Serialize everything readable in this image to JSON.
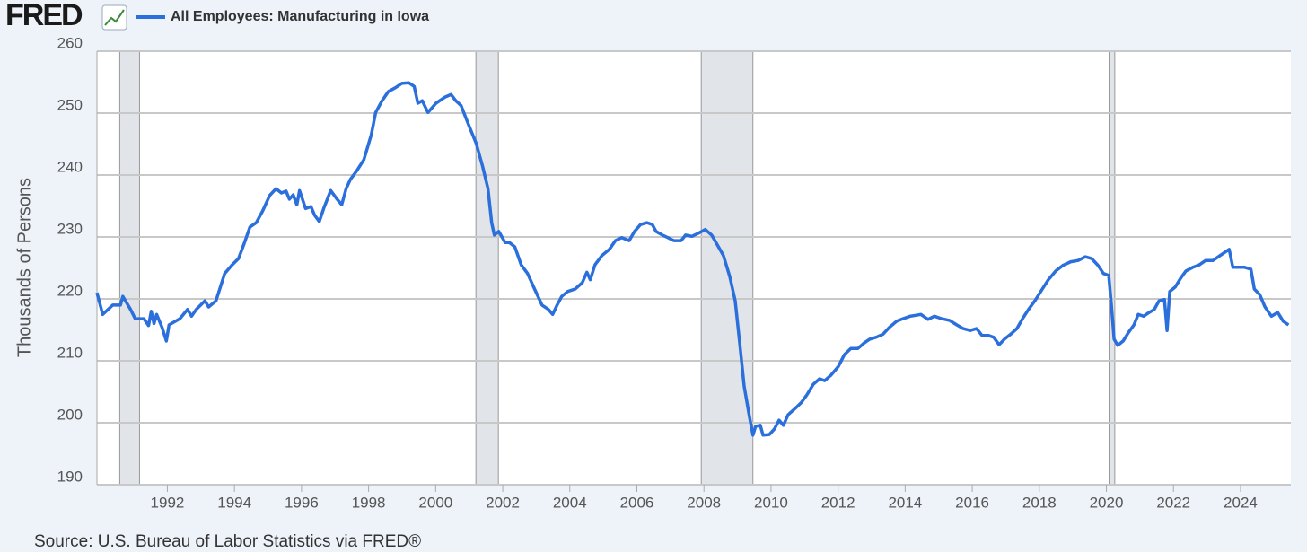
{
  "chart_data": {
    "type": "line",
    "logo": "FRED",
    "ylabel": "Thousands of Persons",
    "source": "Source: U.S. Bureau of Labor Statistics via FRED®",
    "xlim": [
      1989.9,
      2025.5
    ],
    "xticks": [
      1992,
      1994,
      1996,
      1998,
      2000,
      2002,
      2004,
      2006,
      2008,
      2010,
      2012,
      2014,
      2016,
      2018,
      2020,
      2022,
      2024
    ],
    "ylim": [
      190,
      260
    ],
    "yticks": [
      190,
      200,
      210,
      220,
      230,
      240,
      250,
      260
    ],
    "grid": true,
    "shaded_ranges": [
      [
        1990.58,
        1991.17
      ],
      [
        2001.2,
        2001.87
      ],
      [
        2007.92,
        2009.46
      ],
      [
        2020.08,
        2020.25
      ]
    ],
    "shade_color": "#e1e4e9",
    "x": [
      1989.9,
      1990.07,
      1990.37,
      1990.6,
      1990.67,
      1990.9,
      1991.04,
      1991.3,
      1991.44,
      1991.52,
      1991.6,
      1991.68,
      1991.84,
      1991.97,
      1992.05,
      1992.37,
      1992.6,
      1992.72,
      1992.86,
      1993.12,
      1993.23,
      1993.45,
      1993.71,
      1993.93,
      1994.12,
      1994.3,
      1994.46,
      1994.65,
      1994.84,
      1995.05,
      1995.24,
      1995.4,
      1995.54,
      1995.64,
      1995.75,
      1995.86,
      1995.94,
      1996.12,
      1996.28,
      1996.39,
      1996.53,
      1996.66,
      1996.87,
      1997.06,
      1997.2,
      1997.33,
      1997.46,
      1997.65,
      1997.86,
      1998.08,
      1998.21,
      1998.4,
      1998.59,
      1998.8,
      1998.99,
      1999.2,
      1999.36,
      1999.47,
      1999.6,
      1999.77,
      2000.01,
      2000.28,
      2000.46,
      2000.6,
      2000.76,
      2000.94,
      2001.21,
      2001.4,
      2001.56,
      2001.67,
      2001.75,
      2001.88,
      2002.07,
      2002.2,
      2002.36,
      2002.55,
      2002.74,
      2002.95,
      2003.17,
      2003.36,
      2003.49,
      2003.62,
      2003.76,
      2003.94,
      2004.16,
      2004.37,
      2004.51,
      2004.61,
      2004.75,
      2004.96,
      2005.18,
      2005.36,
      2005.55,
      2005.77,
      2005.93,
      2006.11,
      2006.3,
      2006.46,
      2006.57,
      2006.76,
      2006.92,
      2007.1,
      2007.32,
      2007.45,
      2007.64,
      2007.83,
      2008.04,
      2008.23,
      2008.39,
      2008.58,
      2008.77,
      2008.93,
      2009.06,
      2009.2,
      2009.36,
      2009.46,
      2009.54,
      2009.68,
      2009.76,
      2009.95,
      2010.1,
      2010.24,
      2010.37,
      2010.51,
      2010.72,
      2010.91,
      2011.07,
      2011.26,
      2011.45,
      2011.6,
      2011.79,
      2012.01,
      2012.19,
      2012.38,
      2012.59,
      2012.78,
      2012.94,
      2013.13,
      2013.34,
      2013.53,
      2013.75,
      2013.93,
      2014.15,
      2014.47,
      2014.68,
      2014.87,
      2015.09,
      2015.33,
      2015.54,
      2015.73,
      2015.94,
      2016.13,
      2016.29,
      2016.48,
      2016.64,
      2016.8,
      2016.96,
      2017.15,
      2017.33,
      2017.5,
      2017.68,
      2017.87,
      2018.09,
      2018.27,
      2018.49,
      2018.7,
      2018.94,
      2019.16,
      2019.37,
      2019.56,
      2019.75,
      2019.91,
      2020.07,
      2020.15,
      2020.23,
      2020.34,
      2020.5,
      2020.66,
      2020.82,
      2020.95,
      2021.11,
      2021.27,
      2021.43,
      2021.57,
      2021.73,
      2021.81,
      2021.89,
      2022.05,
      2022.21,
      2022.37,
      2022.58,
      2022.77,
      2022.96,
      2023.18,
      2023.39,
      2023.66,
      2023.77,
      2023.93,
      2024.12,
      2024.31,
      2024.41,
      2024.57,
      2024.73,
      2024.92,
      2025.11,
      2025.27,
      2025.43
    ],
    "series": [
      {
        "name": "All Employees: Manufacturing in Iowa",
        "color": "#2a6fdb",
        "values": [
          221,
          217.5,
          219,
          219,
          220.4,
          218.3,
          216.8,
          216.8,
          215.7,
          218,
          216,
          217.5,
          215.4,
          213.2,
          215.8,
          216.8,
          218.3,
          217.2,
          218.3,
          219.7,
          218.7,
          219.7,
          224.1,
          225.5,
          226.5,
          229.1,
          231.6,
          232.3,
          234.2,
          236.7,
          237.8,
          237.1,
          237.4,
          236.1,
          236.8,
          235.2,
          237.5,
          234.6,
          234.9,
          233.5,
          232.5,
          234.6,
          237.5,
          236.1,
          235.2,
          237.8,
          239.3,
          240.7,
          242.5,
          246.5,
          250.1,
          252,
          253.5,
          254.1,
          254.8,
          254.9,
          254.3,
          251.6,
          252,
          250.1,
          251.6,
          252.6,
          253,
          252,
          251.2,
          248.7,
          245.1,
          241.4,
          237.8,
          232.3,
          230.3,
          230.9,
          229.1,
          229.1,
          228.4,
          225.5,
          224.1,
          221.6,
          219,
          218.3,
          217.5,
          219,
          220.4,
          221.2,
          221.6,
          222.6,
          224.3,
          223.1,
          225.5,
          227,
          228,
          229.4,
          229.9,
          229.4,
          230.9,
          232,
          232.3,
          232,
          230.9,
          230.3,
          229.9,
          229.4,
          229.4,
          230.3,
          230.1,
          230.6,
          231.2,
          230.3,
          228.8,
          227,
          223.6,
          219.7,
          213.2,
          205.9,
          200.9,
          198,
          199.4,
          199.6,
          198,
          198.1,
          199,
          200.4,
          199.6,
          201.3,
          202.3,
          203.3,
          204.5,
          206.2,
          207.1,
          206.8,
          207.7,
          209.1,
          211,
          212,
          212,
          212.9,
          213.5,
          213.8,
          214.3,
          215.4,
          216.4,
          216.8,
          217.2,
          217.5,
          216.7,
          217.2,
          216.8,
          216.5,
          215.8,
          215.2,
          214.9,
          215.2,
          214.1,
          214.1,
          213.8,
          212.6,
          213.5,
          214.3,
          215.2,
          216.8,
          218.3,
          219.7,
          221.6,
          223.1,
          224.5,
          225.4,
          226,
          226.2,
          226.8,
          226.5,
          225.4,
          224.1,
          223.8,
          219,
          213.5,
          212.5,
          213.2,
          214.6,
          215.8,
          217.5,
          217.2,
          217.8,
          218.3,
          219.7,
          219.9,
          214.9,
          221.2,
          221.9,
          223.3,
          224.5,
          225.1,
          225.5,
          226.2,
          226.2,
          227,
          228,
          225.1,
          225.1,
          225.1,
          224.8,
          221.6,
          220.7,
          218.7,
          217.2,
          217.8,
          216.4,
          215.8
        ]
      }
    ]
  }
}
